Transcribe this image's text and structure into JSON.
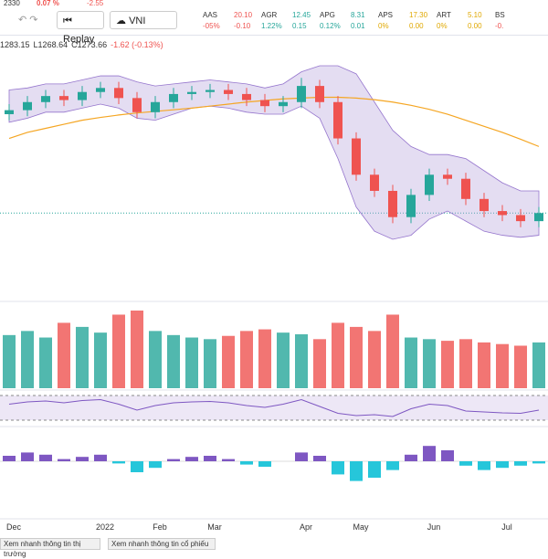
{
  "top_strip": {
    "price": "2330",
    "change_pct": "0.07 %",
    "change": "-2.55"
  },
  "toolbar": {
    "replay": "Replay",
    "symbol": "VNI"
  },
  "tickers": [
    {
      "symbol": "AAS",
      "price": "20.10",
      "pct": "-05%",
      "change": "-0.10",
      "color": "#ef5350"
    },
    {
      "symbol": "AGR",
      "price": "12.45",
      "pct": "1.22%",
      "change": "0.15",
      "color": "#26a69a"
    },
    {
      "symbol": "APG",
      "price": "8.31",
      "pct": "0.12%",
      "change": "0.01",
      "color": "#26a69a"
    },
    {
      "symbol": "APS",
      "price": "17.30",
      "pct": "0%",
      "change": "0.00",
      "color": "#e0a800"
    },
    {
      "symbol": "ART",
      "price": "5.10",
      "pct": "0%",
      "change": "0.00",
      "color": "#e0a800"
    },
    {
      "symbol": "BS",
      "price": "",
      "pct": "-0.",
      "change": "",
      "color": "#ef5350"
    }
  ],
  "ohlc": {
    "high": "1283.15",
    "low": "L1268.64",
    "close": "C1273.66",
    "change": "-1.62 (-0.13%)"
  },
  "chart_data": {
    "type": "candlestick",
    "up_color": "#26a69a",
    "down_color": "#ef5350",
    "open": [
      1440,
      1450,
      1470,
      1485,
      1475,
      1495,
      1505,
      1480,
      1445,
      1470,
      1490,
      1495,
      1500,
      1490,
      1475,
      1460,
      1470,
      1510,
      1470,
      1380,
      1290,
      1250,
      1185,
      1240,
      1290,
      1280,
      1230,
      1200,
      1190,
      1175
    ],
    "high": [
      1465,
      1485,
      1500,
      1500,
      1510,
      1520,
      1520,
      1495,
      1485,
      1505,
      1510,
      1515,
      1515,
      1505,
      1490,
      1485,
      1530,
      1525,
      1485,
      1395,
      1305,
      1265,
      1255,
      1305,
      1305,
      1295,
      1245,
      1215,
      1205,
      1210
    ],
    "low": [
      1425,
      1435,
      1455,
      1460,
      1460,
      1480,
      1465,
      1430,
      1430,
      1455,
      1475,
      1480,
      1475,
      1460,
      1445,
      1445,
      1455,
      1455,
      1365,
      1275,
      1235,
      1170,
      1170,
      1225,
      1265,
      1215,
      1185,
      1175,
      1160,
      1160
    ],
    "close": [
      1450,
      1470,
      1485,
      1475,
      1495,
      1505,
      1480,
      1445,
      1470,
      1490,
      1495,
      1500,
      1490,
      1475,
      1460,
      1470,
      1510,
      1470,
      1380,
      1290,
      1250,
      1185,
      1240,
      1290,
      1280,
      1230,
      1200,
      1190,
      1175,
      1195
    ],
    "ma": {
      "color": "#f5a623",
      "values": [
        1380,
        1395,
        1405,
        1415,
        1425,
        1432,
        1438,
        1443,
        1447,
        1451,
        1455,
        1460,
        1465,
        1470,
        1474,
        1478,
        1480,
        1482,
        1482,
        1480,
        1476,
        1470,
        1462,
        1452,
        1440,
        1425,
        1410,
        1395,
        1378,
        1360
      ]
    },
    "bb_upper": [
      1500,
      1505,
      1515,
      1515,
      1525,
      1535,
      1535,
      1520,
      1510,
      1515,
      1520,
      1525,
      1520,
      1515,
      1505,
      1515,
      1545,
      1560,
      1560,
      1540,
      1470,
      1400,
      1360,
      1340,
      1340,
      1330,
      1300,
      1270,
      1250,
      1250
    ],
    "bb_lower": [
      1420,
      1430,
      1445,
      1445,
      1455,
      1465,
      1455,
      1430,
      1425,
      1440,
      1455,
      1460,
      1455,
      1445,
      1440,
      1440,
      1460,
      1430,
      1330,
      1210,
      1150,
      1130,
      1140,
      1180,
      1200,
      1175,
      1150,
      1140,
      1135,
      1140
    ],
    "volume": [
      650,
      700,
      620,
      800,
      750,
      680,
      900,
      950,
      700,
      650,
      620,
      600,
      640,
      700,
      720,
      680,
      660,
      600,
      800,
      750,
      700,
      900,
      620,
      600,
      580,
      600,
      560,
      540,
      520,
      560
    ],
    "rsi": [
      55,
      60,
      62,
      58,
      63,
      65,
      55,
      42,
      52,
      58,
      60,
      61,
      58,
      52,
      48,
      55,
      65,
      50,
      35,
      30,
      32,
      28,
      45,
      55,
      52,
      40,
      38,
      36,
      35,
      42
    ],
    "macd_hist": [
      5,
      8,
      6,
      2,
      4,
      6,
      -2,
      -10,
      -6,
      2,
      4,
      5,
      2,
      -3,
      -5,
      0,
      8,
      5,
      -12,
      -18,
      -15,
      -8,
      6,
      14,
      10,
      -4,
      -8,
      -6,
      -4,
      -2
    ],
    "x_labels": [
      {
        "index": 0,
        "label": "Dec"
      },
      {
        "index": 5,
        "label": "2022"
      },
      {
        "index": 8,
        "label": "Feb"
      },
      {
        "index": 11,
        "label": "Mar"
      },
      {
        "index": 16,
        "label": "Apr"
      },
      {
        "index": 19,
        "label": "May"
      },
      {
        "index": 23,
        "label": "Jun"
      },
      {
        "index": 27,
        "label": "Jul"
      }
    ]
  },
  "footer": {
    "market": "Xem nhanh thông tin thị trường",
    "stock": "Xem nhanh thông tin cổ phiếu"
  }
}
